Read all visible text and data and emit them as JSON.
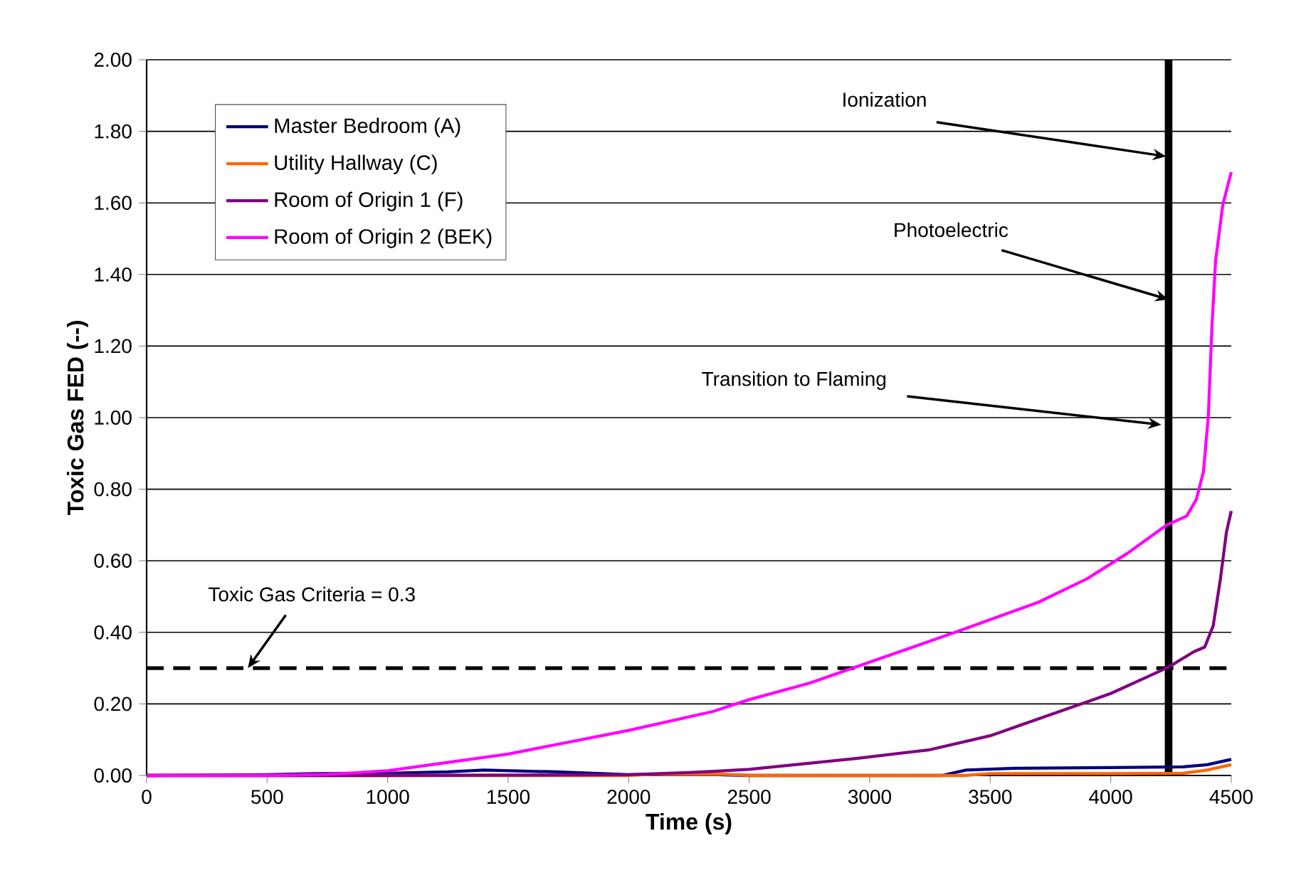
{
  "chart_data": {
    "type": "line",
    "xlabel": "Time (s)",
    "ylabel": "Toxic Gas FED (--)",
    "series": [
      {
        "name": "Master Bedroom (A)",
        "color": "#000080",
        "x": [
          0,
          500,
          700,
          1000,
          1250,
          1400,
          1700,
          2000,
          2300,
          2500,
          3000,
          3300,
          3400,
          3600,
          4000,
          4300,
          4400,
          4500
        ],
        "values": [
          0,
          0.002,
          0.005,
          0.006,
          0.01,
          0.015,
          0.01,
          0.002,
          0.003,
          0,
          0,
          0,
          0.015,
          0.02,
          0.022,
          0.024,
          0.03,
          0.045
        ]
      },
      {
        "name": "Utility Hallway (C)",
        "color": "#ff6600",
        "x": [
          0,
          2000,
          2100,
          2400,
          2500,
          3400,
          3500,
          4000,
          4300,
          4400,
          4500
        ],
        "values": [
          0,
          0,
          0.003,
          0.003,
          0,
          0,
          0.005,
          0.005,
          0.006,
          0.015,
          0.03
        ]
      },
      {
        "name": "Room of Origin 1 (F)",
        "color": "#800080",
        "x": [
          0,
          1000,
          2000,
          2250,
          2500,
          2950,
          3250,
          3500,
          3750,
          4000,
          4150,
          4240,
          4345,
          4390,
          4425,
          4455,
          4480,
          4500
        ],
        "values": [
          0,
          0,
          0.002,
          0.008,
          0.017,
          0.048,
          0.072,
          0.111,
          0.17,
          0.229,
          0.275,
          0.303,
          0.346,
          0.359,
          0.418,
          0.549,
          0.68,
          0.739
        ]
      },
      {
        "name": "Room of Origin 2 (BEK)",
        "color": "#ff00ff",
        "x": [
          0,
          500,
          750,
          1000,
          1500,
          2000,
          2350,
          2500,
          2750,
          2950,
          3350,
          3700,
          3900,
          4070,
          4230,
          4315,
          4355,
          4385,
          4405,
          4420,
          4435,
          4465,
          4500
        ],
        "values": [
          0,
          0,
          0.003,
          0.013,
          0.06,
          0.126,
          0.179,
          0.212,
          0.258,
          0.305,
          0.399,
          0.484,
          0.549,
          0.621,
          0.699,
          0.725,
          0.771,
          0.85,
          1.006,
          1.255,
          1.438,
          1.595,
          1.686
        ]
      }
    ],
    "xlim": [
      0,
      4500
    ],
    "xticks": [
      0,
      500,
      1000,
      1500,
      2000,
      2500,
      3000,
      3500,
      4000,
      4500
    ],
    "ylim": [
      0,
      2
    ],
    "yticks": [
      {
        "value": 0,
        "label": "0.00"
      },
      {
        "value": 0.2,
        "label": "0.20"
      },
      {
        "value": 0.4,
        "label": "0.40"
      },
      {
        "value": 0.6,
        "label": "0.60"
      },
      {
        "value": 0.8,
        "label": "0.80"
      },
      {
        "value": 1,
        "label": "1.00"
      },
      {
        "value": 1.2,
        "label": "1.20"
      },
      {
        "value": 1.4,
        "label": "1.40"
      },
      {
        "value": 1.6,
        "label": "1.60"
      },
      {
        "value": 1.8,
        "label": "1.80"
      },
      {
        "value": 2,
        "label": "2.00"
      }
    ],
    "ref_lines": [
      {
        "axis": "y",
        "value": 0.3,
        "color": "#000000",
        "line_style": "dashed"
      },
      {
        "axis": "x",
        "value": 4240,
        "color": "#000000",
        "line_style": "solid"
      }
    ],
    "annotations": [
      {
        "text": "Ionization",
        "x": 4230,
        "y": 1.73
      },
      {
        "text": "Photoelectric",
        "x": 4240,
        "y": 1.33
      },
      {
        "text": "Transition to Flaming",
        "x": 4210,
        "y": 0.98
      },
      {
        "text": "Toxic Gas Criteria = 0.3",
        "x": 420,
        "y": 0.3
      }
    ],
    "grid": "y",
    "legend": "top left",
    "line_style": "solid",
    "marker": "none"
  }
}
